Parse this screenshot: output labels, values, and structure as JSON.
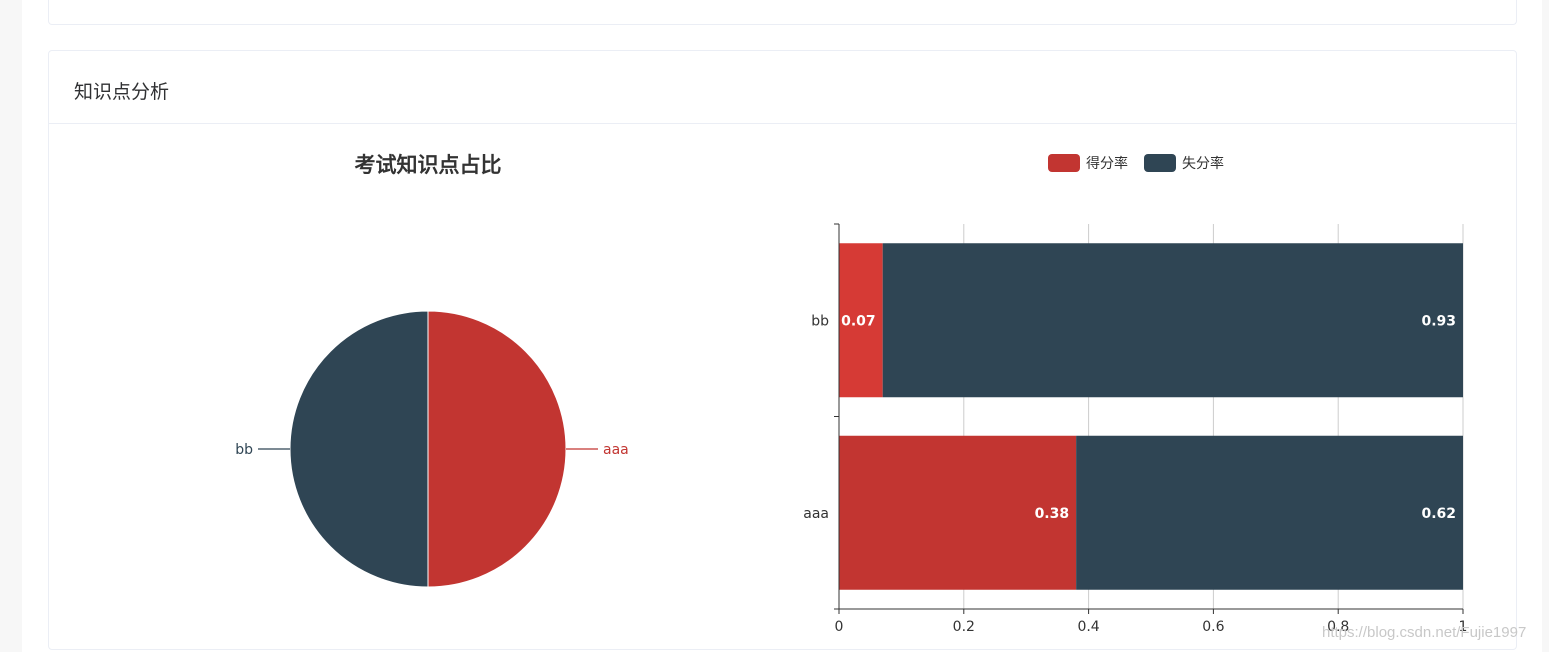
{
  "card": {
    "title": "知识点分析"
  },
  "colors": {
    "red": "#c23531",
    "red_light": "#d63a35",
    "navy": "#2f4554",
    "axis": "#333333",
    "grid": "#cccccc"
  },
  "watermark": "https://blog.csdn.net/Fujie1997",
  "chart_data": [
    {
      "type": "pie",
      "title": "考试知识点占比",
      "slices": [
        {
          "name": "aaa",
          "value": 1,
          "color": "#c23531"
        },
        {
          "name": "bb",
          "value": 1,
          "color": "#2f4554"
        }
      ]
    },
    {
      "type": "bar",
      "orientation": "horizontal",
      "stacked": true,
      "categories": [
        "aaa",
        "bb"
      ],
      "series": [
        {
          "name": "得分率",
          "values": [
            0.38,
            0.07
          ],
          "color": "#c23531"
        },
        {
          "name": "失分率",
          "values": [
            0.62,
            0.93
          ],
          "color": "#2f4554"
        }
      ],
      "xlim": [
        0,
        1
      ],
      "xticks": [
        "0",
        "0.2",
        "0.4",
        "0.6",
        "0.8",
        "1"
      ],
      "legend_placement": "top",
      "grid": true
    }
  ]
}
